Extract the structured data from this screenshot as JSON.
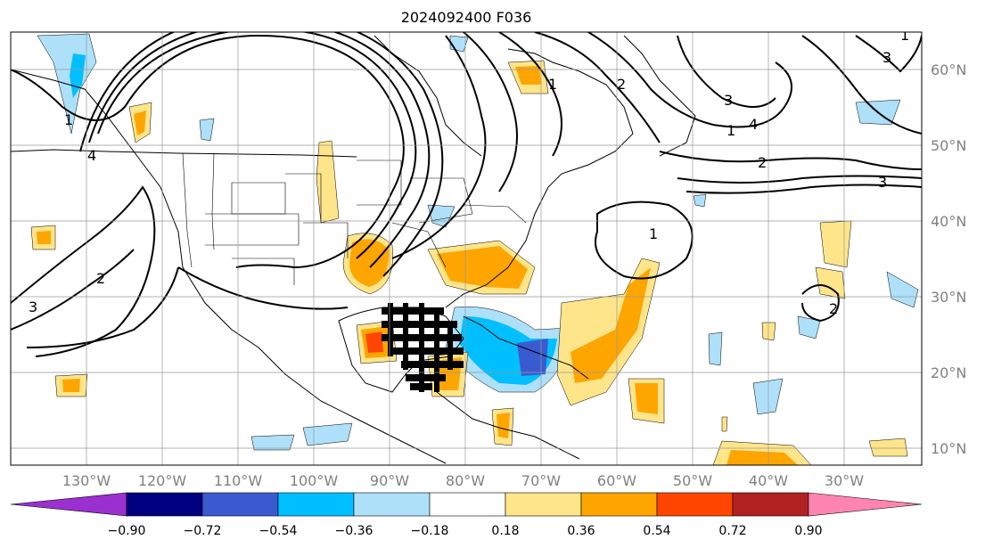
{
  "title": "2024092400 F036",
  "map": {
    "lon_ticks": [
      "130°W",
      "120°W",
      "110°W",
      "100°W",
      "90°W",
      "80°W",
      "70°W",
      "60°W",
      "50°W",
      "40°W",
      "30°W"
    ],
    "lat_ticks": [
      "10°N",
      "20°N",
      "30°N",
      "40°N",
      "50°N",
      "60°N"
    ],
    "contour_labels": [
      "1",
      "2",
      "3",
      "4",
      "1",
      "2",
      "3",
      "4",
      "1",
      "2",
      "3",
      "1",
      "2",
      "3",
      "1"
    ],
    "colors": {
      "purple": "#9b30d0",
      "navy": "#000080",
      "royalblue": "#3a5bd0",
      "deepskyblue": "#00bfff",
      "lightskyblue": "#aee0fa",
      "white": "#ffffff",
      "lightyellow": "#ffe58a",
      "orange": "#ffa500",
      "orangered": "#ff4500",
      "firebrick": "#b22222",
      "pink": "#ff85b0"
    }
  },
  "colorbar": {
    "labels": [
      "−0.90",
      "−0.72",
      "−0.54",
      "−0.36",
      "−0.18",
      "0.18",
      "0.36",
      "0.54",
      "0.72",
      "0.90"
    ]
  }
}
